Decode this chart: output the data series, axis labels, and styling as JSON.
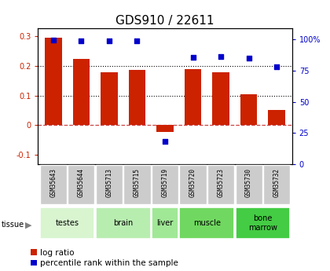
{
  "title": "GDS910 / 22611",
  "samples": [
    "GSM35643",
    "GSM35644",
    "GSM35713",
    "GSM35715",
    "GSM35719",
    "GSM35720",
    "GSM35723",
    "GSM35730",
    "GSM35732"
  ],
  "log_ratio": [
    0.295,
    0.222,
    0.178,
    0.186,
    -0.022,
    0.188,
    0.178,
    0.103,
    0.052
  ],
  "percentile_rank": [
    99.5,
    99.0,
    99.0,
    99.0,
    18.0,
    86.0,
    86.5,
    85.0,
    78.0
  ],
  "tissues": [
    {
      "label": "testes",
      "start": 0,
      "end": 2,
      "color": "#d8f5d0"
    },
    {
      "label": "brain",
      "start": 2,
      "end": 4,
      "color": "#b8edb0"
    },
    {
      "label": "liver",
      "start": 4,
      "end": 5,
      "color": "#a0e896"
    },
    {
      "label": "muscle",
      "start": 5,
      "end": 7,
      "color": "#70d860"
    },
    {
      "label": "bone\nmarrow",
      "start": 7,
      "end": 9,
      "color": "#44cc44"
    }
  ],
  "bar_color": "#cc2200",
  "dot_color": "#0000cc",
  "ylim_left": [
    -0.13,
    0.325
  ],
  "ylim_right": [
    0,
    109
  ],
  "yticks_left": [
    -0.1,
    0.0,
    0.1,
    0.2,
    0.3
  ],
  "ytick_labels_left": [
    "-0.1",
    "0",
    "0.1",
    "0.2",
    "0.3"
  ],
  "yticks_right": [
    0,
    25,
    50,
    75,
    100
  ],
  "ytick_labels_right": [
    "0",
    "25",
    "50",
    "75",
    "100%"
  ],
  "dotted_lines": [
    0.1,
    0.2
  ],
  "zero_line_color": "#cc4444",
  "bg_color": "#ffffff",
  "sample_box_color": "#cccccc",
  "title_fontsize": 11,
  "tick_fontsize": 7,
  "label_fontsize": 7,
  "legend_fontsize": 7.5
}
